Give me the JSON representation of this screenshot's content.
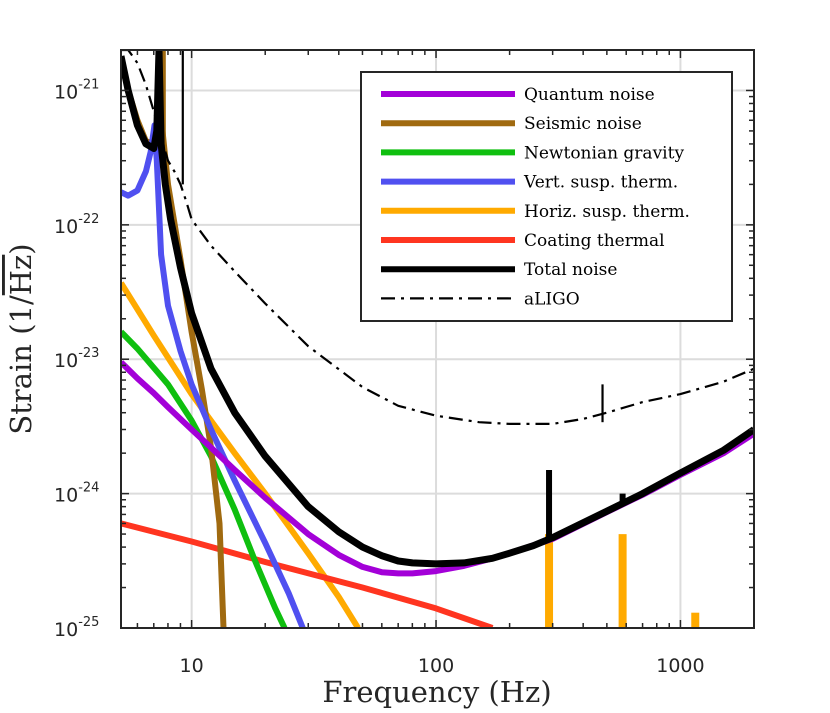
{
  "chart_data": {
    "type": "line",
    "title": "",
    "xlabel": "Frequency (Hz)",
    "ylabel_prefix": "Strain (1/",
    "ylabel_radical": "Hz",
    "ylabel_suffix": ")",
    "x_scale": "log",
    "y_scale": "log",
    "xlim": [
      5.14,
      2000
    ],
    "ylim": [
      1e-25,
      2e-21
    ],
    "grid": true,
    "legend_position": "top-right",
    "x_ticks": [
      {
        "value": 10,
        "label": "10"
      },
      {
        "value": 100,
        "label": "100"
      },
      {
        "value": 1000,
        "label": "1000"
      }
    ],
    "y_ticks": [
      {
        "value": 1e-25,
        "base": "10",
        "exp": "-25"
      },
      {
        "value": 1e-24,
        "base": "10",
        "exp": "-24"
      },
      {
        "value": 1e-23,
        "base": "10",
        "exp": "-23"
      },
      {
        "value": 1e-22,
        "base": "10",
        "exp": "-22"
      },
      {
        "value": 1e-21,
        "base": "10",
        "exp": "-21"
      }
    ],
    "series": [
      {
        "name": "Quantum noise",
        "color": "#a300d8",
        "style": "solid",
        "x": [
          5.14,
          6,
          7,
          8,
          10,
          12,
          15,
          20,
          30,
          40,
          50,
          60,
          70,
          80,
          100,
          130,
          170,
          200,
          300,
          500,
          700,
          1000,
          1500,
          2000
        ],
        "y": [
          9.5e-24,
          7.2e-24,
          5.6e-24,
          4.4e-24,
          3e-24,
          2.2e-24,
          1.5e-24,
          9.3e-25,
          5e-25,
          3.5e-25,
          2.85e-25,
          2.6e-25,
          2.55e-25,
          2.55e-25,
          2.65e-25,
          2.9e-25,
          3.3e-25,
          3.6e-25,
          4.6e-25,
          7.3e-25,
          9.8e-25,
          1.38e-24,
          2e-24,
          2.8e-24
        ]
      },
      {
        "name": "Seismic noise",
        "color": "#a06a10",
        "style": "solid",
        "x": [
          5.14,
          5.5,
          6,
          6.5,
          7,
          7.3,
          7.6,
          8,
          9,
          10,
          11,
          12,
          13,
          13.5
        ],
        "y": [
          1.7e-21,
          1e-21,
          6e-22,
          4.2e-22,
          4e-22,
          7e-22,
          5e-22,
          2e-22,
          5.5e-23,
          1.6e-23,
          6e-24,
          2.2e-24,
          6e-25,
          1e-25
        ]
      },
      {
        "name": "Newtonian gravity",
        "color": "#0fbf0f",
        "style": "solid",
        "x": [
          5.14,
          6,
          8,
          10,
          12,
          15,
          18,
          20,
          22,
          24
        ],
        "y": [
          1.6e-23,
          1.2e-23,
          6.5e-24,
          3.5e-24,
          1.9e-24,
          7.6e-25,
          3.3e-25,
          2.1e-25,
          1.4e-25,
          1e-25
        ]
      },
      {
        "name": "Vert. susp. therm.",
        "color": "#5050f0",
        "style": "solid",
        "x": [
          5.14,
          5.5,
          6,
          6.5,
          6.8,
          7.05,
          7.2,
          7.5,
          8,
          9,
          10,
          12,
          15,
          20,
          25,
          28.5
        ],
        "y": [
          1.75e-22,
          1.65e-22,
          1.8e-22,
          2.5e-22,
          3.5e-22,
          5.5e-22,
          3e-22,
          6e-23,
          2.5e-23,
          1.15e-23,
          6.5e-24,
          3e-24,
          1.25e-24,
          4.3e-25,
          1.8e-25,
          1e-25
        ]
      },
      {
        "name": "Horiz. susp. therm.",
        "color": "#ffaa00",
        "style": "solid",
        "x": [
          5.14,
          7,
          10,
          15,
          20,
          30,
          40,
          48
        ],
        "y": [
          3.7e-23,
          1.5e-23,
          5.5e-24,
          2e-24,
          1e-24,
          3.6e-25,
          1.7e-25,
          1e-25
        ]
      },
      {
        "name": "Coating thermal",
        "color": "#ff3520",
        "style": "solid",
        "x": [
          5.14,
          10,
          20,
          50,
          100,
          170
        ],
        "y": [
          6e-25,
          4.4e-25,
          3.1e-25,
          2e-25,
          1.4e-25,
          1e-25
        ]
      },
      {
        "name": "Total noise",
        "color": "#000000",
        "style": "solid",
        "x": [
          5.14,
          5.5,
          6,
          6.5,
          7,
          7.2,
          7.35,
          7.5,
          7.8,
          8.2,
          9,
          10,
          12,
          15,
          20,
          30,
          40,
          50,
          60,
          70,
          80,
          100,
          130,
          170,
          200,
          250,
          300,
          500,
          700,
          1000,
          1500,
          2000
        ],
        "y": [
          1.8e-21,
          1e-21,
          5.5e-22,
          4e-22,
          3.7e-22,
          5e-22,
          2e-21,
          4e-22,
          2e-22,
          1.1e-22,
          4.8e-23,
          2.2e-23,
          8.5e-24,
          4e-24,
          1.9e-24,
          8e-25,
          5.2e-25,
          4e-25,
          3.45e-25,
          3.15e-25,
          3.05e-25,
          3e-25,
          3.05e-25,
          3.3e-25,
          3.6e-25,
          4.1e-25,
          4.7e-25,
          7.4e-25,
          1e-24,
          1.42e-24,
          2.1e-24,
          3e-24
        ]
      },
      {
        "name": "aLIGO",
        "color": "#000000",
        "style": "dashdot",
        "x": [
          5.14,
          5.5,
          6,
          6.5,
          7,
          7.5,
          8,
          8.5,
          9,
          9.5,
          10,
          12,
          15,
          20,
          30,
          50,
          70,
          100,
          150,
          200,
          300,
          400,
          500,
          700,
          1000,
          1500,
          2000
        ],
        "y": [
          2e-21,
          2e-21,
          1.6e-21,
          1.1e-21,
          7e-22,
          4.5e-22,
          3e-22,
          2.5e-22,
          2e-22,
          1.5e-22,
          1.1e-22,
          7e-23,
          4.5e-23,
          2.6e-23,
          1.25e-23,
          6.2e-24,
          4.5e-24,
          3.8e-24,
          3.4e-24,
          3.3e-24,
          3.3e-24,
          3.6e-24,
          4e-24,
          4.8e-24,
          5.5e-24,
          6.8e-24,
          8.5e-24
        ]
      }
    ],
    "annotations": [
      {
        "series": "Horiz. susp. therm.",
        "type": "spike",
        "x": 290,
        "y_from": 1e-25,
        "y_to": 5e-25
      },
      {
        "series": "Horiz. susp. therm.",
        "type": "spike",
        "x": 580,
        "y_from": 1e-25,
        "y_to": 5e-25
      },
      {
        "series": "Horiz. susp. therm.",
        "type": "spike",
        "x": 1150,
        "y_from": 1e-25,
        "y_to": 1.3e-25
      },
      {
        "series": "Total noise",
        "type": "spike",
        "x": 290,
        "y_from": 4.7e-25,
        "y_to": 1.5e-24
      },
      {
        "series": "Total noise",
        "type": "spike",
        "x": 580,
        "y_from": 8.3e-25,
        "y_to": 1e-24
      },
      {
        "series": "aLIGO",
        "type": "spike",
        "x": 480,
        "y_from": 3.4e-24,
        "y_to": 6.5e-24
      },
      {
        "series": "Seismic noise",
        "type": "spike",
        "x": 7.55,
        "y_from": 4e-22,
        "y_to": 2e-21
      },
      {
        "series": "aLIGO",
        "type": "spike",
        "x": 9.2,
        "y_from": 2e-22,
        "y_to": 2e-21
      }
    ]
  }
}
